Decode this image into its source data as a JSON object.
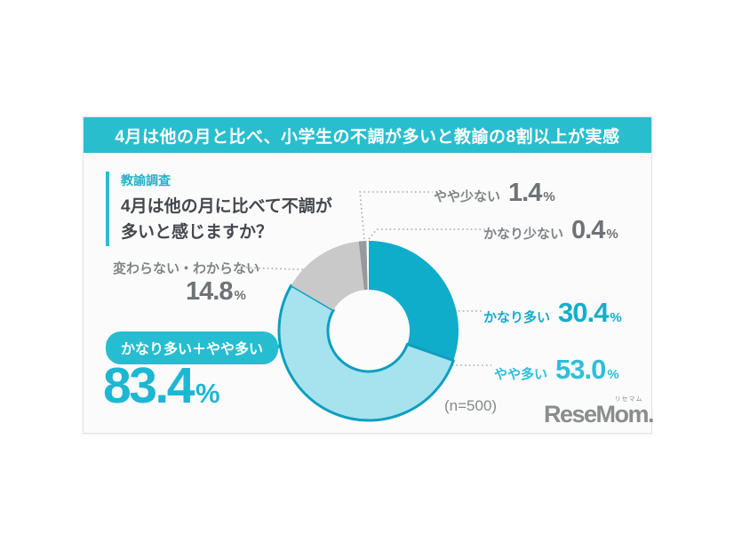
{
  "header": {
    "title": "4月は他の月と比べ、小学生の不調が多いと教諭の8割以上が実感"
  },
  "question": {
    "tag": "教諭調査",
    "text": "4月は他の月に比べて不調が\n多いと感じますか？"
  },
  "chart_data": {
    "type": "pie",
    "donut": true,
    "title": "4月は他の月に比べて不調が多いと感じますか？",
    "unit": "%",
    "start_angle_deg": 0,
    "clockwise": true,
    "legend_position": "callouts",
    "segments": [
      {
        "label": "かなり多い",
        "value": 30.4,
        "display": "30.4",
        "color": "#0fadca"
      },
      {
        "label": "やや多い",
        "value": 53.0,
        "display": "53.0",
        "color": "#a6e3ef",
        "stroke": "#0d9ec0",
        "stroke_width": 3
      },
      {
        "label": "変わらない・わからない",
        "value": 14.8,
        "display": "14.8",
        "color": "#c9c9ca"
      },
      {
        "label": "やや少ない",
        "value": 1.4,
        "display": "1.4",
        "color": "#98999b"
      },
      {
        "label": "かなり少ない",
        "value": 0.4,
        "display": "0.4",
        "color": "#ffffff"
      }
    ],
    "combined": {
      "label": "かなり多い＋やや多い",
      "display": "83.4",
      "unit": "%"
    },
    "sample_label": "(n=500)",
    "accent_color": "#29bece"
  },
  "footer": {
    "logo_text": "ReseMom",
    "logo_ruby": "リセマム",
    "logo_period": "."
  }
}
